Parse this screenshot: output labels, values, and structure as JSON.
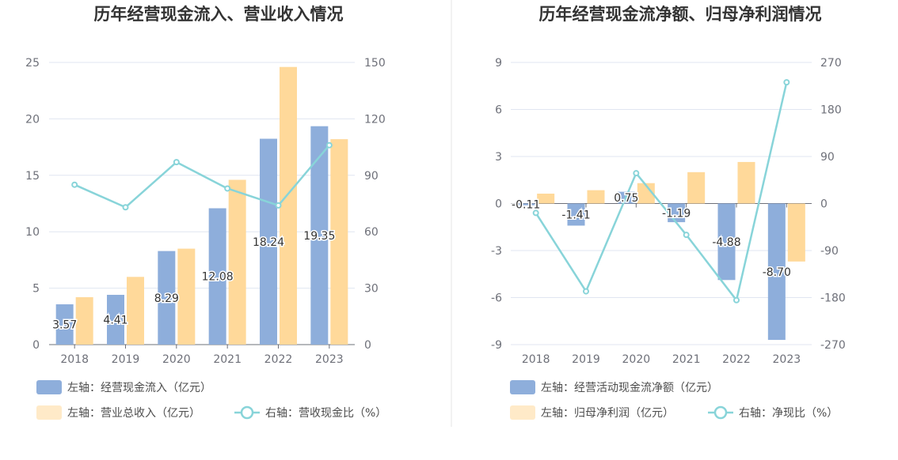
{
  "colors": {
    "blue": "#8eaedb",
    "orange": "#ffd99a",
    "teal": "#88d4d9",
    "grid": "#e0e6f1",
    "axis": "#6e7079"
  },
  "chart_data": [
    {
      "type": "bar",
      "title": "历年经营现金流入、营业收入情况",
      "categories": [
        "2018",
        "2019",
        "2020",
        "2021",
        "2022",
        "2023"
      ],
      "left_axis": {
        "ylim": [
          0,
          25
        ],
        "ticks": [
          "25",
          "20",
          "15",
          "10",
          "5",
          "0"
        ]
      },
      "right_axis": {
        "ylim": [
          0,
          150
        ],
        "ticks": [
          "150",
          "120",
          "90",
          "60",
          "30",
          "0"
        ]
      },
      "series": [
        {
          "name": "左轴：经营现金流入（亿元）",
          "type": "bar",
          "axis": "left",
          "color": "#8eaedb",
          "values": [
            3.57,
            4.41,
            8.29,
            12.08,
            18.24,
            19.35
          ],
          "labels": [
            "3.57",
            "4.41",
            "8.29",
            "12.08",
            "18.24",
            "19.35"
          ]
        },
        {
          "name": "左轴：营业总收入（亿元）",
          "type": "bar",
          "axis": "left",
          "color": "#ffd99a",
          "values": [
            4.2,
            6.0,
            8.5,
            14.6,
            24.6,
            18.2
          ]
        },
        {
          "name": "右轴：营收现金比（%）",
          "type": "line",
          "axis": "right",
          "color": "#88d4d9",
          "values": [
            85,
            73,
            97,
            83,
            74,
            106
          ]
        }
      ],
      "legend": "bottom"
    },
    {
      "type": "bar",
      "title": "历年经营现金流净额、归母净利润情况",
      "categories": [
        "2018",
        "2019",
        "2020",
        "2021",
        "2022",
        "2023"
      ],
      "left_axis": {
        "ylim": [
          -9,
          9
        ],
        "ticks": [
          "9",
          "6",
          "3",
          "0",
          "-3",
          "-6",
          "-9"
        ]
      },
      "right_axis": {
        "ylim": [
          -270,
          270
        ],
        "ticks": [
          "270",
          "180",
          "90",
          "0",
          "-90",
          "-180",
          "-270"
        ]
      },
      "series": [
        {
          "name": "左轴：经营活动现金流净额（亿元）",
          "type": "bar",
          "axis": "left",
          "color": "#8eaedb",
          "values": [
            -0.11,
            -1.41,
            0.75,
            -1.19,
            -4.88,
            -8.7
          ],
          "labels": [
            "-0.11",
            "-1.41",
            "0.75",
            "-1.19",
            "-4.88",
            "-8.70"
          ]
        },
        {
          "name": "左轴：归母净利润（亿元）",
          "type": "bar",
          "axis": "left",
          "color": "#ffd99a",
          "values": [
            0.63,
            0.85,
            1.3,
            2.0,
            2.65,
            -3.7
          ]
        },
        {
          "name": "右轴：净现比（%）",
          "type": "line",
          "axis": "right",
          "color": "#88d4d9",
          "values": [
            -18,
            -168,
            58,
            -60,
            -185,
            232
          ]
        }
      ],
      "legend": "bottom"
    }
  ]
}
